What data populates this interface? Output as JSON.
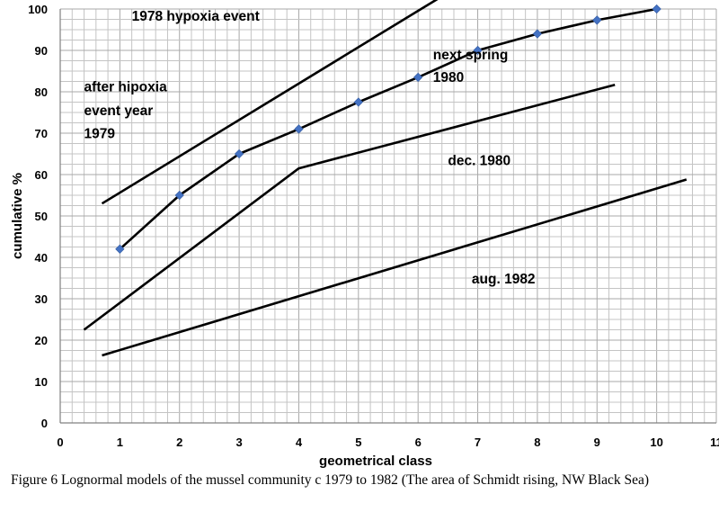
{
  "chart_data": {
    "type": "line",
    "xlabel": "geometrical class",
    "ylabel": "cumulative %",
    "xlim": [
      0,
      11
    ],
    "ylim": [
      0,
      100
    ],
    "x_ticks": [
      "0",
      "1",
      "2",
      "3",
      "4",
      "5",
      "6",
      "7",
      "8",
      "9",
      "10",
      "11"
    ],
    "y_ticks": [
      "0",
      "10",
      "20",
      "30",
      "40",
      "50",
      "60",
      "70",
      "80",
      "90",
      "100"
    ],
    "grid": true,
    "annotations": [
      {
        "text": "1978 hypoxia event",
        "x": 1.2,
        "y": 97.2
      },
      {
        "text": "next spring",
        "x": 6.25,
        "y": 87.8
      },
      {
        "text": "1980",
        "x": 6.25,
        "y": 82.4
      },
      {
        "text": "after hipoxia",
        "x": 0.4,
        "y": 80.1
      },
      {
        "text": "event year",
        "x": 0.4,
        "y": 74.4
      },
      {
        "text": "1979",
        "x": 0.4,
        "y": 68.8
      },
      {
        "text": "dec. 1980",
        "x": 6.5,
        "y": 62.3
      },
      {
        "text": "aug. 1982",
        "x": 6.9,
        "y": 33.7
      }
    ],
    "series": [
      {
        "values": [
          [
            0.7,
            53
          ],
          [
            6.05,
            100
          ],
          [
            6.85,
            107
          ]
        ],
        "color": "#000000",
        "markers": false
      },
      {
        "values": [
          [
            1,
            42
          ],
          [
            2,
            55
          ],
          [
            3,
            65
          ],
          [
            4,
            71
          ],
          [
            5,
            77.5
          ],
          [
            6,
            83.5
          ],
          [
            7,
            90
          ],
          [
            8,
            94
          ],
          [
            9,
            97.3
          ],
          [
            10,
            100
          ]
        ],
        "color": "#000000",
        "markers": true,
        "marker_color": "#4472C4"
      },
      {
        "values": [
          [
            0.4,
            22.5
          ],
          [
            4,
            61.5
          ],
          [
            9.3,
            81.7
          ]
        ],
        "color": "#000000",
        "markers": false
      },
      {
        "values": [
          [
            0.7,
            16.3
          ],
          [
            10.5,
            58.8
          ]
        ],
        "color": "#000000",
        "markers": false
      }
    ]
  },
  "caption": "Figure 6 Lognormal models of the mussel community c 1979 to 1982 (The area of Schmidt rising, NW Black Sea)"
}
